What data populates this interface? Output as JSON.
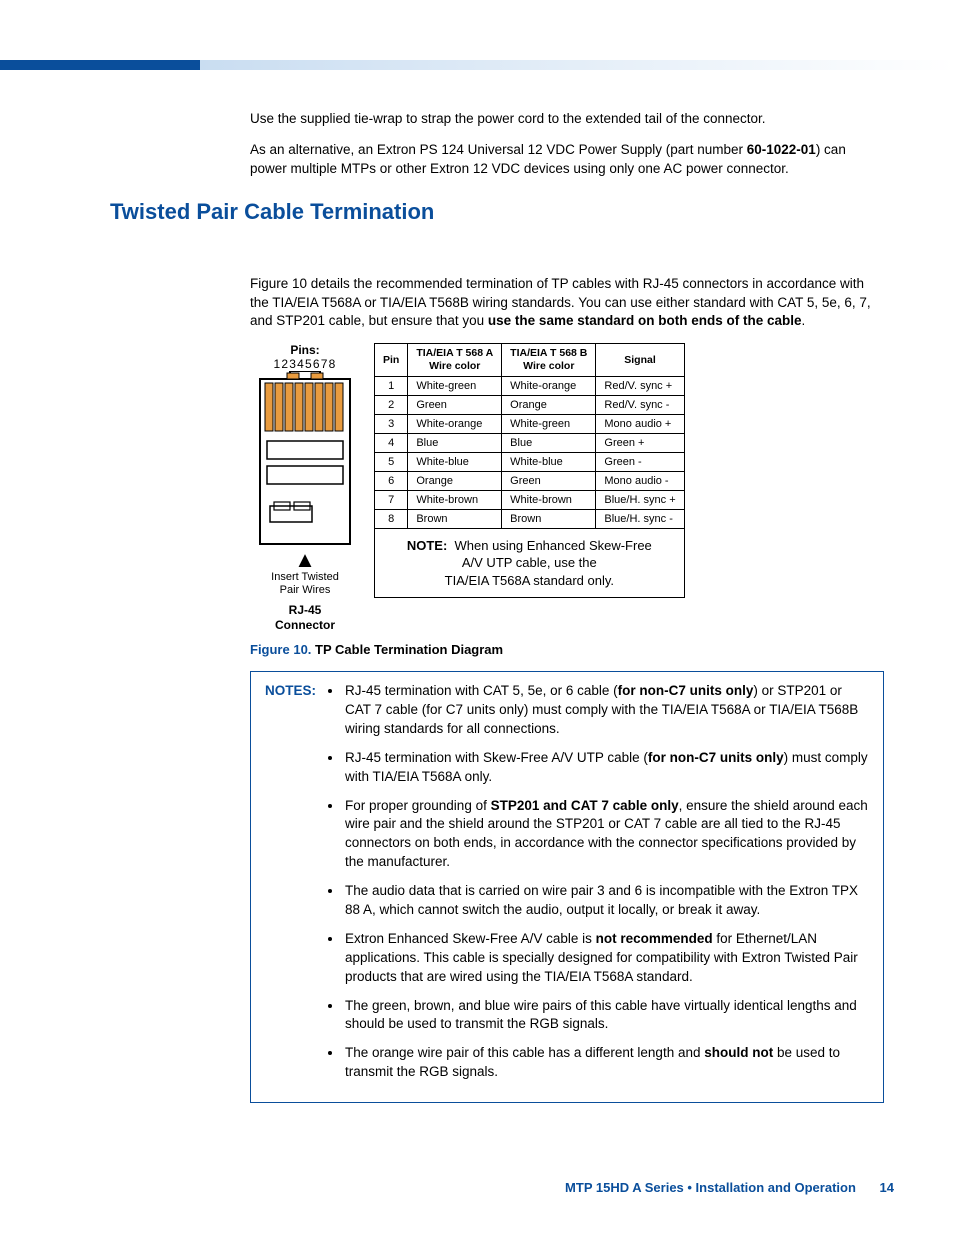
{
  "intro": {
    "p1": "Use the supplied tie-wrap to strap the power cord to the extended tail of the connector.",
    "p2a": "As an alternative, an Extron PS 124 Universal 12 VDC Power Supply (part number ",
    "p2b": "60-1022-01",
    "p2c": ") can power multiple MTPs or other Extron 12 VDC devices using only one AC power connector."
  },
  "section_title": "Twisted Pair Cable Termination",
  "section_p_a": "Figure 10 details the recommended termination of TP cables with RJ-45 connectors in accordance with the TIA/EIA T568A or TIA/EIA T568B wiring standards. You can use either standard with CAT 5, 5e, 6, 7, and STP201 cable, but ensure that you ",
  "section_p_b": "use the same standard on both ends of the cable",
  "section_p_c": ".",
  "rj45": {
    "pins_label": "Pins:",
    "pin_nums": "12345678",
    "insert_line1": "Insert Twisted",
    "insert_line2": "Pair Wires",
    "conn_line1": "RJ-45",
    "conn_line2": "Connector",
    "fill_color": "#e89b3f",
    "stroke_color": "#000000"
  },
  "table": {
    "head": {
      "pin": "Pin",
      "a_l1": "TIA/EIA T 568 A",
      "a_l2": "Wire color",
      "b_l1": "TIA/EIA T 568 B",
      "b_l2": "Wire color",
      "signal": "Signal"
    },
    "rows": [
      {
        "pin": "1",
        "a": "White-green",
        "b": "White-orange",
        "s": "Red/V. sync +"
      },
      {
        "pin": "2",
        "a": "Green",
        "b": "Orange",
        "s": "Red/V. sync -"
      },
      {
        "pin": "3",
        "a": "White-orange",
        "b": "White-green",
        "s": "Mono audio +"
      },
      {
        "pin": "4",
        "a": "Blue",
        "b": "Blue",
        "s": "Green +"
      },
      {
        "pin": "5",
        "a": "White-blue",
        "b": "White-blue",
        "s": "Green -"
      },
      {
        "pin": "6",
        "a": "Orange",
        "b": "Green",
        "s": "Mono audio -"
      },
      {
        "pin": "7",
        "a": "White-brown",
        "b": "White-brown",
        "s": "Blue/H. sync +"
      },
      {
        "pin": "8",
        "a": "Brown",
        "b": "Brown",
        "s": "Blue/H. sync -"
      }
    ],
    "note_label": "NOTE:",
    "note_text_l1": "When using Enhanced Skew-Free",
    "note_text_l2": "A/V UTP cable, use the",
    "note_text_l3": "TIA/EIA T568A standard only."
  },
  "fig_caption": {
    "num": "Figure 10.",
    "title": " TP Cable Termination Diagram"
  },
  "notes": {
    "label": "NOTES:",
    "items": [
      {
        "pre": "RJ-45 termination with CAT 5, 5e, or 6 cable (",
        "bold": "for non-C7 units only",
        "post": ") or STP201 or CAT 7 cable (for C7 units only) must comply with the TIA/EIA T568A or TIA/EIA T568B wiring standards for all connections."
      },
      {
        "pre": "RJ-45 termination with Skew-Free A/V UTP cable (",
        "bold": "for non-C7 units only",
        "post": ") must comply with TIA/EIA T568A only."
      },
      {
        "pre": "For proper grounding of ",
        "bold": "STP201 and CAT 7 cable only",
        "post": ", ensure the shield around each wire pair and the shield around the STP201 or CAT 7 cable are all tied to the RJ-45 connectors on both ends, in accordance with the connector specifications provided by the manufacturer."
      },
      {
        "pre": "The audio data that is carried on wire pair 3 and 6 is incompatible with the Extron TPX 88 A, which cannot switch the audio, output it locally, or break it away.",
        "bold": "",
        "post": ""
      },
      {
        "pre": "Extron Enhanced Skew-Free A/V cable is ",
        "bold": "not recommended",
        "post": " for Ethernet/LAN applications. This cable is specially designed for compatibility with Extron Twisted Pair products that are wired using the TIA/EIA T568A standard."
      },
      {
        "pre": "The green, brown, and blue wire pairs of this cable have virtually identical lengths and should be used to transmit the RGB signals.",
        "bold": "",
        "post": ""
      },
      {
        "pre": "The orange wire pair of this cable has a different length and ",
        "bold": "should not",
        "post": " be used to transmit the RGB signals."
      }
    ]
  },
  "footer": {
    "text": "MTP 15HD A Series • Installation and Operation",
    "page": "14"
  }
}
